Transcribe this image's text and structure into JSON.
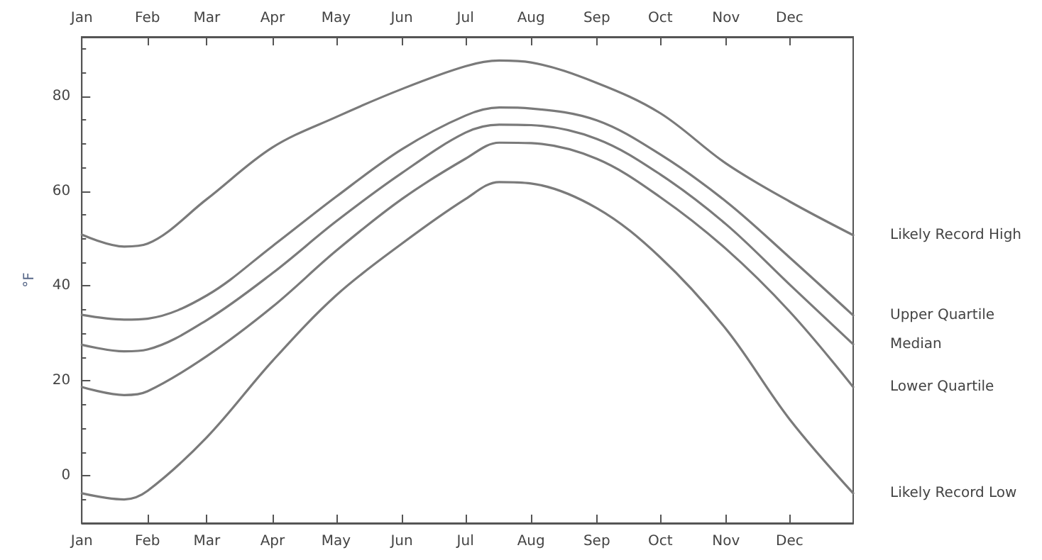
{
  "chart_data": {
    "type": "line",
    "ylabel": "°F",
    "x": [
      "--01-01",
      "--01-21",
      "--02-01",
      "--03-01",
      "--04-01",
      "--05-01",
      "--06-01",
      "--07-01",
      "--07-17",
      "--08-01",
      "--09-01",
      "--10-01",
      "--11-01",
      "--12-01",
      "--12-31"
    ],
    "xlim": [
      "--01-01",
      "--12-31"
    ],
    "xticks": [
      {
        "value": "--01-01",
        "label": "Jan"
      },
      {
        "value": "--02-01",
        "label": "Feb"
      },
      {
        "value": "--03-01",
        "label": "Mar"
      },
      {
        "value": "--04-01",
        "label": "Apr"
      },
      {
        "value": "--05-01",
        "label": "May"
      },
      {
        "value": "--06-01",
        "label": "Jun"
      },
      {
        "value": "--07-01",
        "label": "Jul"
      },
      {
        "value": "--08-01",
        "label": "Aug"
      },
      {
        "value": "--09-01",
        "label": "Sep"
      },
      {
        "value": "--10-01",
        "label": "Oct"
      },
      {
        "value": "--11-01",
        "label": "Nov"
      },
      {
        "value": "--12-01",
        "label": "Dec"
      }
    ],
    "x2lim": [
      "--01-01",
      "--12-31"
    ],
    "x2ticks": [
      {
        "value": "--01-01",
        "label": "Jan"
      },
      {
        "value": "--02-01",
        "label": "Feb"
      },
      {
        "value": "--03-01",
        "label": "Mar"
      },
      {
        "value": "--04-01",
        "label": "Apr"
      },
      {
        "value": "--05-01",
        "label": "May"
      },
      {
        "value": "--06-01",
        "label": "Jun"
      },
      {
        "value": "--07-01",
        "label": "Jul"
      },
      {
        "value": "--08-01",
        "label": "Aug"
      },
      {
        "value": "--09-01",
        "label": "Sep"
      },
      {
        "value": "--10-01",
        "label": "Oct"
      },
      {
        "value": "--11-01",
        "label": "Nov"
      },
      {
        "value": "--12-01",
        "label": "Dec"
      }
    ],
    "ylim": [
      -10,
      92.5
    ],
    "yticks": [
      0,
      20,
      40,
      60,
      80
    ],
    "grid": false,
    "legend": false,
    "marker": "none",
    "line_style": "solid",
    "series": [
      {
        "name": "Likely Record High",
        "color": "#7a7a7a",
        "values": [
          50.8,
          48.3,
          48.9,
          58.3,
          69.2,
          75.6,
          81.5,
          86.3,
          87.5,
          87.1,
          82.8,
          76.4,
          65.8,
          57.8,
          50.7
        ]
      },
      {
        "name": "Upper Quartile",
        "color": "#7a7a7a",
        "values": [
          33.9,
          32.9,
          33.1,
          38.0,
          48.4,
          58.8,
          68.8,
          75.9,
          77.6,
          77.4,
          74.9,
          67.7,
          57.8,
          46.0,
          33.8
        ]
      },
      {
        "name": "Median",
        "color": "#7a7a7a",
        "values": [
          27.6,
          26.2,
          26.6,
          32.8,
          42.7,
          53.6,
          63.8,
          72.3,
          74.0,
          73.9,
          71.0,
          63.5,
          53.0,
          40.3,
          27.7
        ]
      },
      {
        "name": "Lower Quartile",
        "color": "#7a7a7a",
        "values": [
          18.7,
          17.0,
          17.8,
          25.2,
          35.6,
          47.4,
          58.3,
          66.8,
          70.2,
          70.1,
          66.8,
          58.7,
          47.8,
          34.6,
          18.7
        ]
      },
      {
        "name": "Likely Record Low",
        "color": "#7a7a7a",
        "values": [
          -3.7,
          -5.0,
          -3.2,
          8.1,
          24.2,
          38.0,
          48.9,
          58.3,
          61.9,
          61.6,
          56.4,
          46.0,
          30.9,
          11.9,
          -3.7
        ]
      }
    ]
  }
}
